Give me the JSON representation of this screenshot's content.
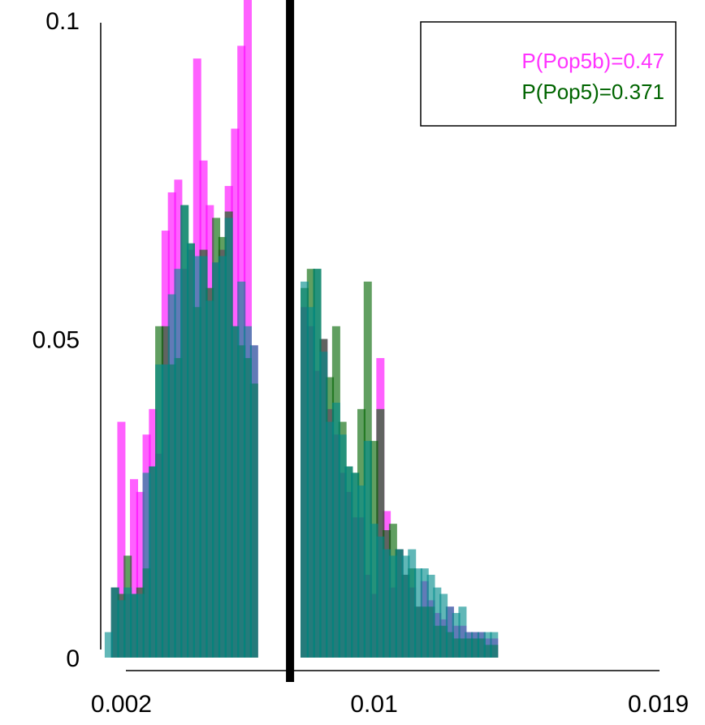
{
  "chart_data": {
    "type": "bar",
    "title": "",
    "xlabel": "",
    "ylabel": "",
    "ylim": [
      0,
      0.1
    ],
    "xlim": [
      0.0015,
      0.0195
    ],
    "bin_width": 0.0002,
    "yticks": [
      "0",
      "0.05",
      "0.1"
    ],
    "xticks": [
      "0.002",
      "0.01",
      "0.019"
    ],
    "xtick_values": [
      0.002,
      0.01,
      0.019
    ],
    "ytick_values": [
      0,
      0.05,
      0.1
    ],
    "vline": 0.00734,
    "legend": {
      "position": "top-right",
      "entries": [
        {
          "text": "P(Pop5b)=0.47",
          "color": "#ff33ff"
        },
        {
          "text": "P(Pop5)=0.371",
          "color": "#006400"
        }
      ]
    },
    "colors": {
      "magenta": "#ff00ff",
      "green": "#006400",
      "teal": "#008b8b"
    },
    "x": [
      0.0016,
      0.0018,
      0.002,
      0.0022,
      0.0024,
      0.0026,
      0.0028,
      0.003,
      0.0032,
      0.0034,
      0.0036,
      0.0038,
      0.004,
      0.0042,
      0.0044,
      0.0046,
      0.0048,
      0.005,
      0.0052,
      0.0054,
      0.0056,
      0.0058,
      0.006,
      0.0062,
      0.0064,
      0.0066,
      0.0068,
      0.007,
      0.0078,
      0.008,
      0.0082,
      0.0084,
      0.0086,
      0.0088,
      0.009,
      0.0092,
      0.0094,
      0.0096,
      0.0098,
      0.01,
      0.0102,
      0.0104,
      0.0106,
      0.0108,
      0.011,
      0.0112,
      0.0114,
      0.0116,
      0.0118,
      0.012,
      0.0122,
      0.0124,
      0.0126,
      0.0128,
      0.013,
      0.0132,
      0.0134,
      0.0136,
      0.0138,
      0.014,
      0.0142,
      0.0144,
      0.0146,
      0.0148,
      0.015,
      0.0152,
      0.0154,
      0.0156,
      0.0158,
      0.016,
      0.0162,
      0.0164,
      0.0166,
      0.0168,
      0.017,
      0.0172,
      0.0174,
      0.0176,
      0.0178,
      0.018,
      0.0182,
      0.0184,
      0.0186,
      0.0188,
      0.019
    ],
    "series": [
      {
        "name": "P(Pop5b)=0.47",
        "values": [
          0,
          0.011,
          0.037,
          0.01,
          0.028,
          0.026,
          0.035,
          0.039,
          0.032,
          0.067,
          0.073,
          0.075,
          0.061,
          0.064,
          0.094,
          0.078,
          0.071,
          0.062,
          0.064,
          0.074,
          0.083,
          0.096,
          0.104,
          0.049,
          0,
          0,
          0,
          0,
          0.055,
          0.052,
          0.045,
          0.05,
          0.039,
          0.035,
          0.029,
          0.026,
          0.022,
          0.022,
          0.013,
          0.01,
          0.047,
          0.023,
          0.011,
          0.017,
          0.013,
          0.011,
          0.008,
          0.012,
          0.009,
          0.007,
          0.006,
          0.008,
          0.005,
          0.005,
          0.004,
          0.004,
          0.004,
          0.003,
          0.003,
          0,
          0,
          0,
          0,
          0,
          0,
          0,
          0,
          0,
          0,
          0,
          0,
          0,
          0,
          0,
          0,
          0,
          0,
          0,
          0,
          0,
          0,
          0,
          0,
          0,
          0
        ]
      },
      {
        "name": "P(Pop5)=0.371",
        "values": [
          0,
          0.011,
          0.01,
          0.016,
          0.01,
          0.011,
          0.014,
          0.03,
          0.052,
          0.052,
          0.046,
          0.047,
          0.071,
          0.065,
          0.055,
          0.064,
          0.058,
          0.069,
          0.066,
          0.07,
          0.052,
          0.049,
          0.047,
          0.043,
          0,
          0,
          0,
          0,
          0.058,
          0.061,
          0.061,
          0.05,
          0.044,
          0.052,
          0.037,
          0.03,
          0.029,
          0.039,
          0.059,
          0.034,
          0.039,
          0.02,
          0.021,
          0.017,
          0.013,
          0.014,
          0.008,
          0.008,
          0.008,
          0.005,
          0.005,
          0.004,
          0.003,
          0.003,
          0.003,
          0.003,
          0.003,
          0.002,
          0.002,
          0,
          0,
          0,
          0,
          0,
          0,
          0,
          0,
          0,
          0,
          0,
          0,
          0,
          0,
          0,
          0,
          0,
          0,
          0,
          0,
          0,
          0,
          0,
          0,
          0,
          0
        ]
      },
      {
        "name": "",
        "values": [
          0.004,
          0.011,
          0.009,
          0.011,
          0.01,
          0.01,
          0.029,
          0.03,
          0.046,
          0.046,
          0.057,
          0.061,
          0.071,
          0.065,
          0.063,
          0.063,
          0.056,
          0.062,
          0.063,
          0.069,
          0.052,
          0.059,
          0.052,
          0.049,
          0,
          0,
          0,
          0,
          0.059,
          0.055,
          0.061,
          0.048,
          0.037,
          0.04,
          0.035,
          0.03,
          0.029,
          0.027,
          0.034,
          0.021,
          0.019,
          0.017,
          0.016,
          0.017,
          0.016,
          0.017,
          0.014,
          0.014,
          0.013,
          0.011,
          0.01,
          0.008,
          0.007,
          0.008,
          0.004,
          0.004,
          0.004,
          0.004,
          0.004,
          0,
          0,
          0,
          0,
          0,
          0,
          0,
          0,
          0,
          0,
          0,
          0,
          0,
          0,
          0,
          0,
          0,
          0,
          0,
          0,
          0,
          0,
          0,
          0,
          0,
          0
        ]
      }
    ]
  }
}
